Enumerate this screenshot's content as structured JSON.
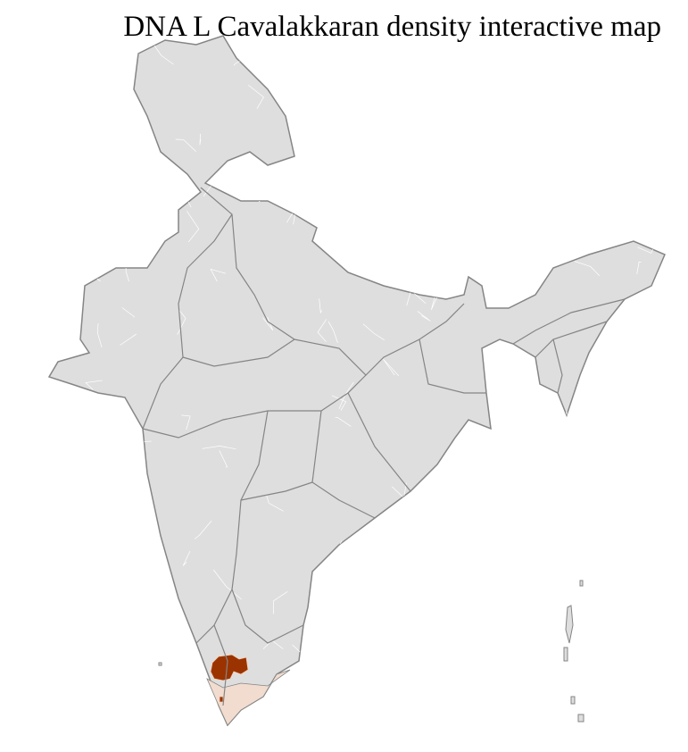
{
  "title": "DNA L Cavalakkaran density interactive map",
  "map": {
    "region": "India",
    "base_fill": "#dedede",
    "district_border": "#ffffff",
    "state_border": "#858585",
    "density_colors": {
      "high": "#9b3300",
      "low": "#f1dccf"
    }
  }
}
